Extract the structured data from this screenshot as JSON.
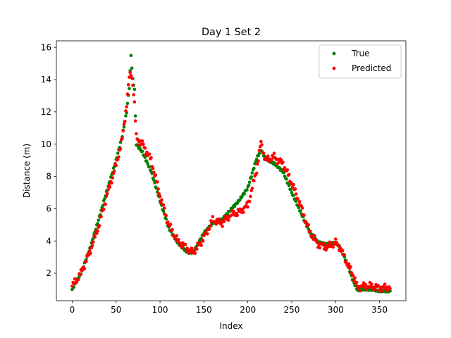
{
  "chart_data": {
    "type": "scatter",
    "title": "Day 1 Set 2",
    "xlabel": "Index",
    "ylabel": "Distance (m)",
    "xlim": [
      -18,
      380
    ],
    "ylim": [
      0.3,
      16.4
    ],
    "xticks": [
      0,
      50,
      100,
      150,
      200,
      250,
      300,
      350
    ],
    "yticks": [
      2,
      4,
      6,
      8,
      10,
      12,
      14,
      16
    ],
    "grid": false,
    "legend_position": "top-right",
    "series": [
      {
        "name": "True",
        "color": "#008000",
        "anchors": [
          [
            0,
            1.0
          ],
          [
            10,
            2.0
          ],
          [
            20,
            3.5
          ],
          [
            30,
            5.3
          ],
          [
            40,
            7.2
          ],
          [
            50,
            9.0
          ],
          [
            57,
            10.5
          ],
          [
            62,
            12.0
          ],
          [
            65,
            13.5
          ],
          [
            67,
            15.5
          ],
          [
            69,
            14.0
          ],
          [
            71,
            13.4
          ],
          [
            73,
            10.0
          ],
          [
            80,
            9.5
          ],
          [
            90,
            8.3
          ],
          [
            100,
            6.5
          ],
          [
            110,
            4.8
          ],
          [
            120,
            3.9
          ],
          [
            130,
            3.35
          ],
          [
            135,
            3.25
          ],
          [
            140,
            3.5
          ],
          [
            150,
            4.5
          ],
          [
            160,
            5.1
          ],
          [
            170,
            5.3
          ],
          [
            180,
            5.9
          ],
          [
            190,
            6.5
          ],
          [
            200,
            7.3
          ],
          [
            210,
            9.1
          ],
          [
            215,
            9.65
          ],
          [
            220,
            9.1
          ],
          [
            230,
            8.8
          ],
          [
            240,
            8.3
          ],
          [
            250,
            7.0
          ],
          [
            260,
            5.8
          ],
          [
            270,
            4.6
          ],
          [
            280,
            3.9
          ],
          [
            290,
            3.8
          ],
          [
            300,
            3.9
          ],
          [
            305,
            3.6
          ],
          [
            310,
            3.0
          ],
          [
            315,
            2.3
          ],
          [
            320,
            1.5
          ],
          [
            325,
            0.95
          ],
          [
            330,
            1.0
          ],
          [
            340,
            1.0
          ],
          [
            350,
            0.9
          ],
          [
            362,
            0.9
          ]
        ]
      },
      {
        "name": "Predicted",
        "color": "#ff0000",
        "anchors": [
          [
            0,
            1.2
          ],
          [
            10,
            2.0
          ],
          [
            20,
            3.3
          ],
          [
            30,
            4.9
          ],
          [
            40,
            6.9
          ],
          [
            50,
            8.7
          ],
          [
            57,
            10.3
          ],
          [
            62,
            12.5
          ],
          [
            65,
            14.1
          ],
          [
            67,
            14.4
          ],
          [
            69,
            13.8
          ],
          [
            71,
            12.5
          ],
          [
            73,
            10.4
          ],
          [
            80,
            10.0
          ],
          [
            90,
            9.0
          ],
          [
            100,
            6.8
          ],
          [
            110,
            5.0
          ],
          [
            120,
            4.0
          ],
          [
            130,
            3.6
          ],
          [
            135,
            3.3
          ],
          [
            140,
            3.4
          ],
          [
            150,
            4.2
          ],
          [
            160,
            5.3
          ],
          [
            170,
            5.1
          ],
          [
            180,
            5.6
          ],
          [
            190,
            5.8
          ],
          [
            200,
            6.2
          ],
          [
            210,
            8.4
          ],
          [
            215,
            10.1
          ],
          [
            220,
            9.0
          ],
          [
            230,
            9.2
          ],
          [
            240,
            8.8
          ],
          [
            250,
            7.6
          ],
          [
            260,
            6.2
          ],
          [
            270,
            4.6
          ],
          [
            280,
            3.8
          ],
          [
            290,
            3.6
          ],
          [
            300,
            3.9
          ],
          [
            305,
            3.6
          ],
          [
            310,
            3.0
          ],
          [
            315,
            2.4
          ],
          [
            320,
            1.9
          ],
          [
            325,
            1.1
          ],
          [
            330,
            1.2
          ],
          [
            340,
            1.2
          ],
          [
            350,
            1.1
          ],
          [
            362,
            1.1
          ]
        ]
      }
    ]
  }
}
